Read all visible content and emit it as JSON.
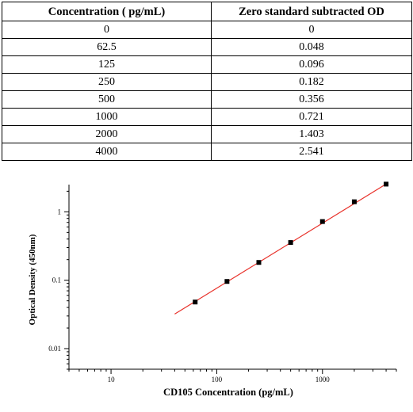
{
  "table": {
    "headers": [
      "Concentration ( pg/mL)",
      "Zero standard subtracted OD"
    ],
    "rows": [
      [
        "0",
        "0"
      ],
      [
        "62.5",
        "0.048"
      ],
      [
        "125",
        "0.096"
      ],
      [
        "250",
        "0.182"
      ],
      [
        "500",
        "0.356"
      ],
      [
        "1000",
        "0.721"
      ],
      [
        "2000",
        "1.403"
      ],
      [
        "4000",
        "2.541"
      ]
    ]
  },
  "chart_data": {
    "type": "scatter",
    "title": "",
    "xlabel": "CD105 Concentration (pg/mL)",
    "ylabel": "Optical Density (450nm)",
    "x_scale": "log",
    "y_scale": "log",
    "xlim": [
      4,
      5000
    ],
    "ylim": [
      0.005,
      2.5
    ],
    "x_ticks": [
      10,
      100,
      1000
    ],
    "x_tick_labels": [
      "10",
      "100",
      "1000"
    ],
    "y_ticks": [
      0.01,
      0.1,
      1
    ],
    "y_tick_labels": [
      "0.01",
      "0.1",
      "1"
    ],
    "grid": false,
    "legend": "none",
    "series": [
      {
        "x": [
          62.5,
          125,
          250,
          500,
          1000,
          2000,
          4000
        ],
        "y": [
          0.048,
          0.096,
          0.182,
          0.356,
          0.721,
          1.403,
          2.541
        ],
        "marker": "square",
        "marker_color": "#000000"
      }
    ],
    "fit_line": {
      "color": "#e8312a",
      "x_range": [
        40,
        4000
      ],
      "y_range": [
        0.032,
        2.55
      ]
    }
  }
}
